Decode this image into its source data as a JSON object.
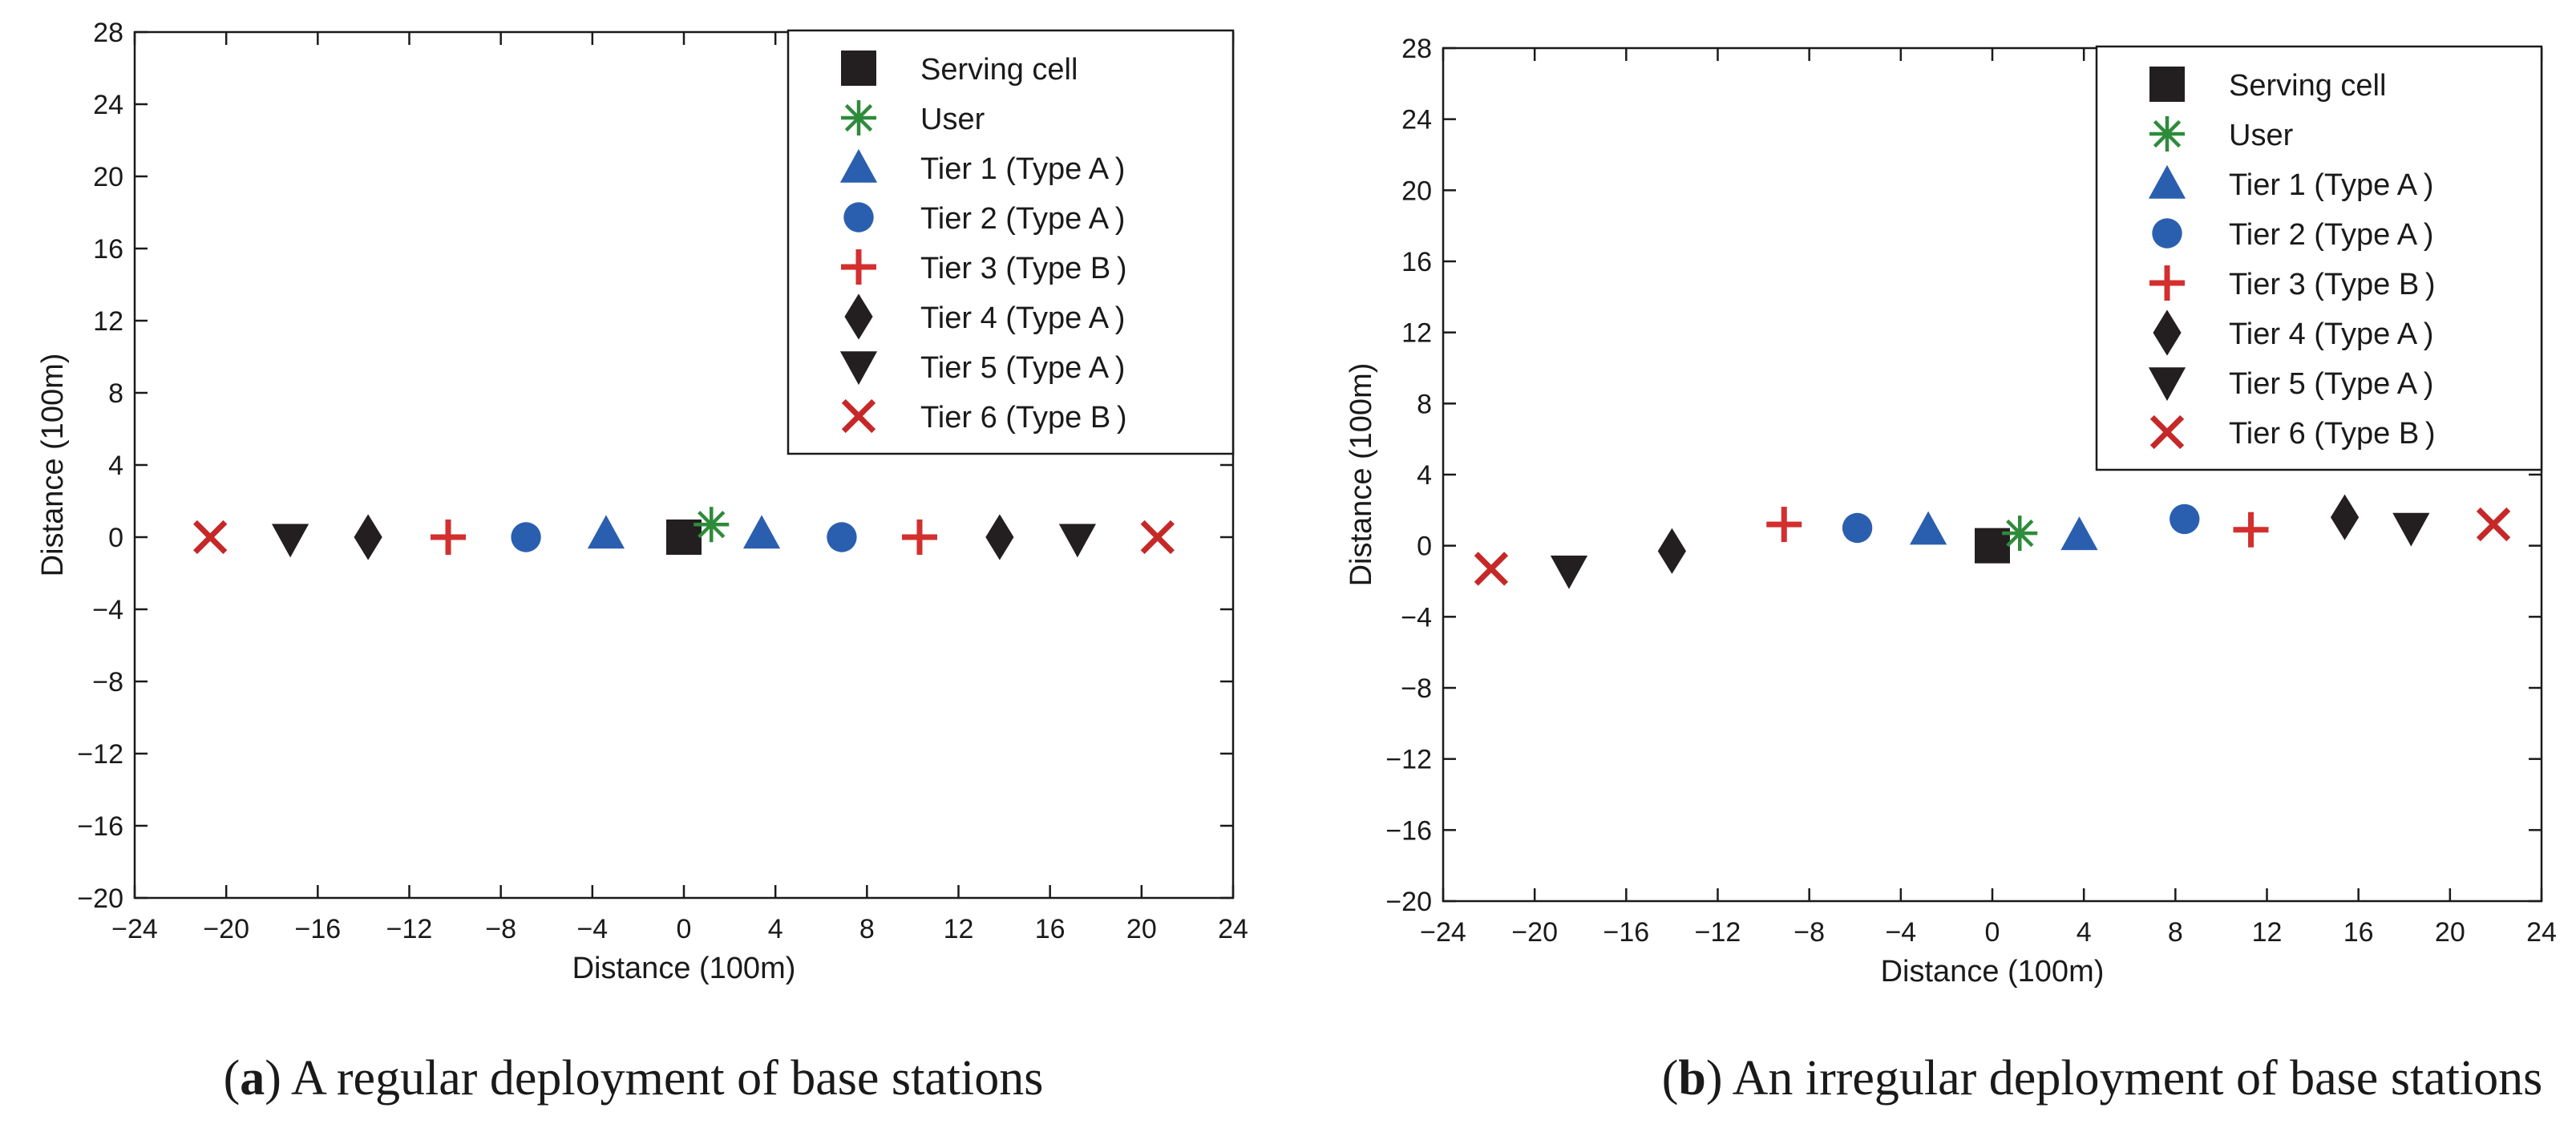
{
  "chart_data": [
    {
      "id": "a",
      "type": "scatter",
      "xlabel": "Distance (100m)",
      "ylabel": "Distance (100m)",
      "xlim": [
        -24,
        24
      ],
      "ylim": [
        -20,
        28
      ],
      "xticks": [
        -24,
        -20,
        -16,
        -12,
        -8,
        -4,
        0,
        4,
        8,
        12,
        16,
        20,
        24
      ],
      "yticks": [
        -20,
        -16,
        -12,
        -8,
        -4,
        0,
        4,
        8,
        12,
        16,
        20,
        24,
        28
      ],
      "grid": false,
      "legend_position": "top-right",
      "caption_label": "a",
      "caption_text": " A regular deployment of base stations",
      "series": [
        {
          "name": "Serving cell",
          "marker": "square",
          "color": "#231f20",
          "points": [
            [
              0,
              0
            ]
          ]
        },
        {
          "name": "User",
          "marker": "asterisk",
          "color": "#2e8b3a",
          "points": [
            [
              1.2,
              0.7
            ]
          ]
        },
        {
          "name": "Tier 1 (Type A )",
          "marker": "triangle-up",
          "color": "#2a5fb0",
          "points": [
            [
              -3.4,
              0.2
            ],
            [
              3.4,
              0.2
            ]
          ]
        },
        {
          "name": "Tier 2 (Type A )",
          "marker": "circle",
          "color": "#2a5fb0",
          "points": [
            [
              -6.9,
              0
            ],
            [
              6.9,
              0
            ]
          ]
        },
        {
          "name": "Tier 3 (Type B )",
          "marker": "plus",
          "color": "#d32f2f",
          "points": [
            [
              -10.3,
              0
            ],
            [
              10.3,
              0
            ]
          ]
        },
        {
          "name": "Tier 4 (Type A )",
          "marker": "diamond",
          "color": "#231f20",
          "points": [
            [
              -13.8,
              0
            ],
            [
              13.8,
              0
            ]
          ]
        },
        {
          "name": "Tier 5 (Type A )",
          "marker": "triangle-down",
          "color": "#231f20",
          "points": [
            [
              -17.2,
              -0.1
            ],
            [
              17.2,
              -0.1
            ]
          ]
        },
        {
          "name": "Tier 6 (Type B )",
          "marker": "x",
          "color": "#c62828",
          "points": [
            [
              -20.7,
              0
            ],
            [
              20.7,
              0
            ]
          ]
        }
      ]
    },
    {
      "id": "b",
      "type": "scatter",
      "xlabel": "Distance (100m)",
      "ylabel": "Distance (100m)",
      "xlim": [
        -24,
        24
      ],
      "ylim": [
        -20,
        28
      ],
      "xticks": [
        -24,
        -20,
        -16,
        -12,
        -8,
        -4,
        0,
        4,
        8,
        12,
        16,
        20,
        24
      ],
      "yticks": [
        -20,
        -16,
        -12,
        -8,
        -4,
        0,
        4,
        8,
        12,
        16,
        20,
        24,
        28
      ],
      "grid": false,
      "legend_position": "top-right",
      "caption_label": "b",
      "caption_text": " An irregular deployment of base stations",
      "series": [
        {
          "name": "Serving cell",
          "marker": "square",
          "color": "#231f20",
          "points": [
            [
              0,
              0
            ]
          ]
        },
        {
          "name": "User",
          "marker": "asterisk",
          "color": "#2e8b3a",
          "points": [
            [
              1.2,
              0.7
            ]
          ]
        },
        {
          "name": "Tier 1 (Type A )",
          "marker": "triangle-up",
          "color": "#2a5fb0",
          "points": [
            [
              -2.8,
              0.9
            ],
            [
              3.8,
              0.6
            ]
          ]
        },
        {
          "name": "Tier 2 (Type A )",
          "marker": "circle",
          "color": "#2a5fb0",
          "points": [
            [
              -5.9,
              1
            ],
            [
              8.4,
              1.5
            ]
          ]
        },
        {
          "name": "Tier 3 (Type B )",
          "marker": "plus",
          "color": "#d32f2f",
          "points": [
            [
              -9.1,
              1.2
            ],
            [
              11.3,
              0.9
            ]
          ]
        },
        {
          "name": "Tier 4 (Type A )",
          "marker": "diamond",
          "color": "#231f20",
          "points": [
            [
              -14,
              -0.3
            ],
            [
              15.4,
              1.6
            ]
          ]
        },
        {
          "name": "Tier 5 (Type A )",
          "marker": "triangle-down",
          "color": "#231f20",
          "points": [
            [
              -18.5,
              -1.4
            ],
            [
              18.3,
              1
            ]
          ]
        },
        {
          "name": "Tier 6 (Type B )",
          "marker": "x",
          "color": "#c62828",
          "points": [
            [
              -21.9,
              -1.3
            ],
            [
              21.9,
              1.2
            ]
          ]
        }
      ]
    }
  ]
}
